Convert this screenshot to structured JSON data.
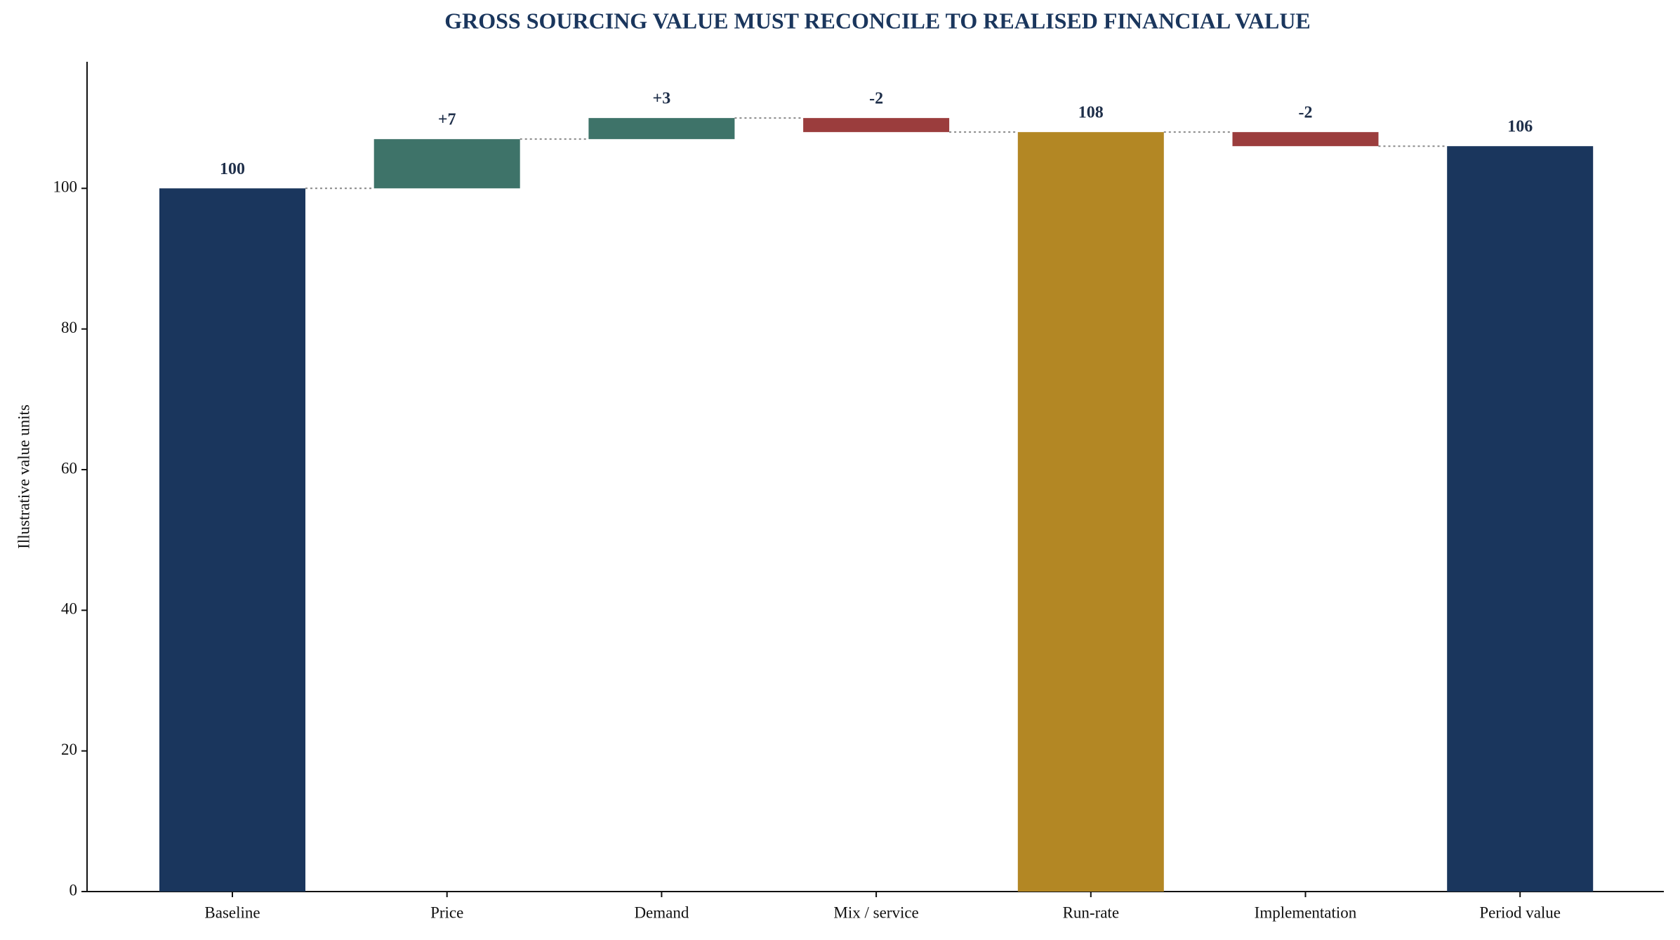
{
  "chart_data": {
    "type": "waterfall",
    "title": "GROSS SOURCING VALUE MUST RECONCILE TO REALISED FINANCIAL VALUE",
    "y_label": "Illustrative value units",
    "categories": [
      "Baseline",
      "Price",
      "Demand",
      "Mix / service",
      "Run-rate",
      "Implementation",
      "Period value"
    ],
    "values": [
      100,
      7,
      3,
      -2,
      108,
      -2,
      106
    ],
    "value_labels": [
      "100",
      "+7",
      "+3",
      "-2",
      "108",
      "-2",
      "106"
    ],
    "measure": [
      "absolute",
      "relative",
      "relative",
      "relative",
      "absolute",
      "relative",
      "absolute"
    ],
    "colors": [
      "#1a365d",
      "#3e7369",
      "#3e7369",
      "#9b3d3d",
      "#b38724",
      "#9b3d3d",
      "#1a365d"
    ],
    "ylim": [
      0,
      118
    ],
    "yticks": [
      0,
      20,
      40,
      60,
      80,
      100
    ],
    "grid": false
  }
}
